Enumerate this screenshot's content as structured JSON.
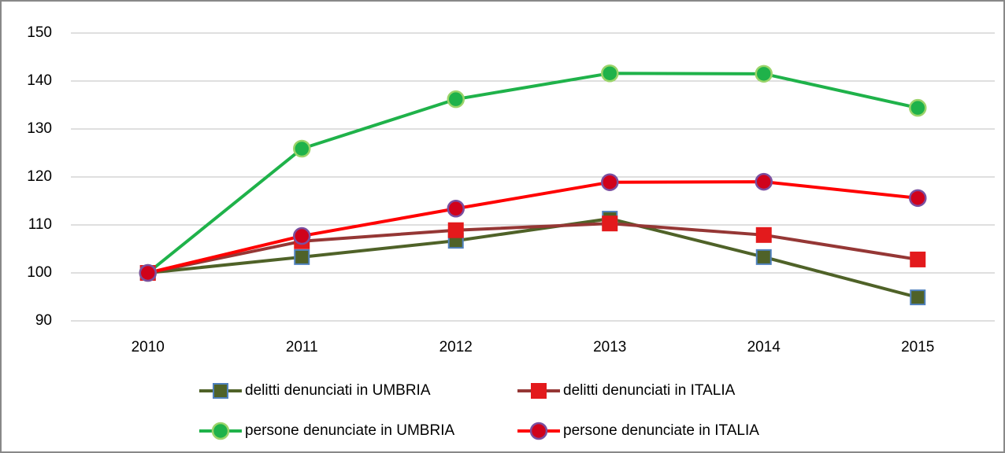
{
  "chart_data": {
    "type": "line",
    "categories": [
      "2010",
      "2011",
      "2012",
      "2013",
      "2014",
      "2015"
    ],
    "series": [
      {
        "name": "delitti denunciati in UMBRIA",
        "color": "#4f6228",
        "marker": "square",
        "marker_edge": "#4f81bd",
        "values": [
          100,
          103.3,
          106.7,
          111.3,
          103.3,
          94.9
        ]
      },
      {
        "name": "delitti denunciati in ITALIA",
        "color": "#953735",
        "marker": "square",
        "marker_fill": "#e31a1c",
        "marker_edge": "#e31a1c",
        "values": [
          100,
          106.6,
          108.9,
          110.3,
          107.9,
          102.8
        ]
      },
      {
        "name": "persone denunciate in UMBRIA",
        "color": "#1fb24a",
        "marker": "circle",
        "marker_edge": "#9bd46a",
        "values": [
          100,
          125.9,
          136.2,
          141.6,
          141.5,
          134.4
        ]
      },
      {
        "name": "persone denunciate in ITALIA",
        "color": "#ff0000",
        "marker": "circle",
        "marker_fill": "#d0021b",
        "marker_edge": "#7a4fa0",
        "values": [
          100,
          107.7,
          113.4,
          118.9,
          119.0,
          115.6
        ]
      }
    ],
    "ylim": [
      90,
      150
    ],
    "yticks": [
      90,
      100,
      110,
      120,
      130,
      140,
      150
    ],
    "grid": true,
    "legend": "bottom"
  }
}
